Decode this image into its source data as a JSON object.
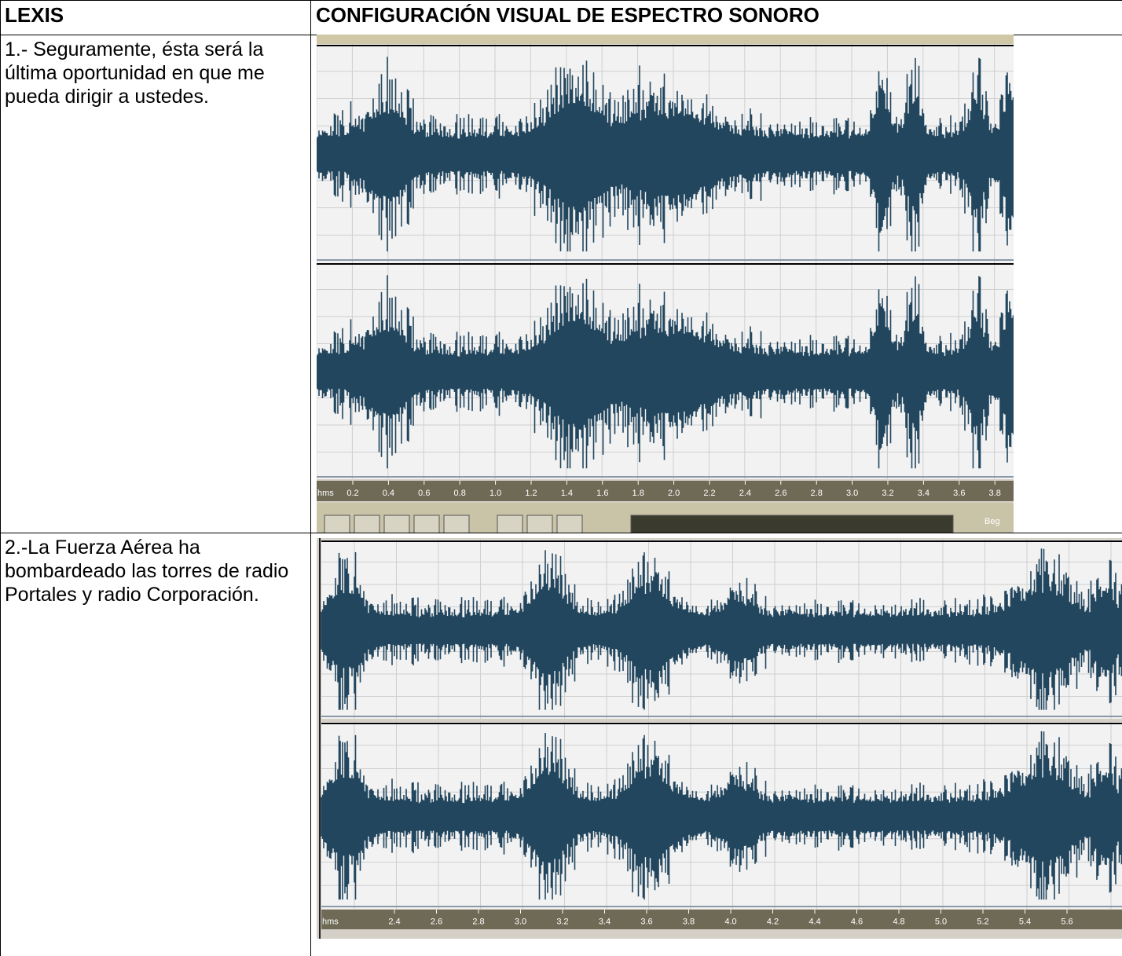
{
  "table": {
    "header": [
      "LEXIS",
      "CONFIGURACIÓN VISUAL DE ESPECTRO SONORO"
    ],
    "rows": [
      {
        "text": "1.- Seguramente, ésta será la última oportunidad en que me pueda dirigir a ustedes.",
        "ruler": {
          "unit": "hms",
          "labels": [
            "0.2",
            "0.4",
            "0.6",
            "0.8",
            "1.0",
            "1.2",
            "1.4",
            "1.6",
            "1.8",
            "2.0",
            "2.2",
            "2.4",
            "2.6",
            "2.8",
            "3.0",
            "3.2",
            "3.4",
            "3.6",
            "3.8"
          ]
        },
        "toolbar_label": "Beg"
      },
      {
        "text": "2.-La Fuerza Aérea ha bombardeado las torres de radio Portales y radio Corporación.",
        "ruler": {
          "unit": "hms",
          "labels": [
            "2.4",
            "2.6",
            "2.8",
            "3.0",
            "3.2",
            "3.4",
            "3.6",
            "3.8",
            "4.0",
            "4.2",
            "4.4",
            "4.6",
            "4.8",
            "5.0",
            "5.2",
            "5.4",
            "5.6"
          ]
        }
      }
    ]
  }
}
